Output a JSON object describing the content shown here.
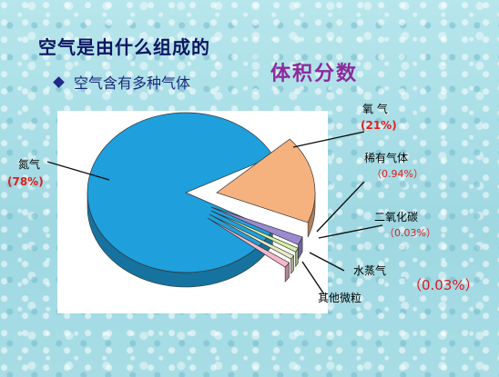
{
  "heading": "空气是由什么组成的",
  "bullet": "空气含有多种气体",
  "subtitle": "体积分数",
  "side_note": "（0.03%）",
  "colors": {
    "nitrogen": "#1f9fdc",
    "oxygen": "#f5b27e",
    "noble": "#9b8ad0",
    "co2": "#d6f2a8",
    "water": "#e9ecc4",
    "other": "#f7b8cc",
    "label_red": "#e01e1e"
  },
  "chart_data": {
    "type": "pie",
    "style": "3d-exploded",
    "slices": [
      {
        "name": "氮气",
        "value_label": "(78%)",
        "value": 78
      },
      {
        "name": "氧 气",
        "value_label": "(21%)",
        "value": 21
      },
      {
        "name": "稀有气体",
        "value_label": "（0.94%）",
        "value": 0.94
      },
      {
        "name": "二氧化碳",
        "value_label": "（0.03%）",
        "value": 0.03
      },
      {
        "name": "水蒸气",
        "value_label": "",
        "value": 0.03
      },
      {
        "name": "其他微粒",
        "value_label": "",
        "value": 0.03
      }
    ]
  }
}
